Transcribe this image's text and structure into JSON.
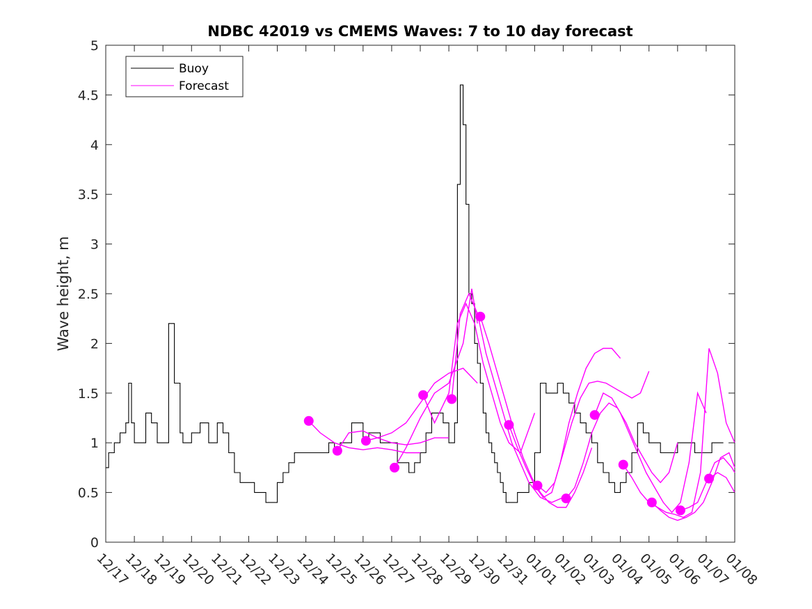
{
  "chart_data": {
    "type": "line",
    "title": "NDBC 42019 vs CMEMS Waves: 7 to 10 day forecast",
    "xlabel": "",
    "ylabel": "Wave height, m",
    "ylim": [
      0,
      5
    ],
    "xlim": [
      0,
      22
    ],
    "yticks": [
      0,
      0.5,
      1,
      1.5,
      2,
      2.5,
      3,
      3.5,
      4,
      4.5,
      5
    ],
    "ytick_labels": [
      "0",
      "0.5",
      "1",
      "1.5",
      "2",
      "2.5",
      "3",
      "3.5",
      "4",
      "4.5",
      "5"
    ],
    "xticks": [
      0,
      1,
      2,
      3,
      4,
      5,
      6,
      7,
      8,
      9,
      10,
      11,
      12,
      13,
      14,
      15,
      16,
      17,
      18,
      19,
      20,
      21,
      22
    ],
    "xtick_labels": [
      "12/17",
      "12/18",
      "12/19",
      "12/20",
      "12/21",
      "12/22",
      "12/23",
      "12/24",
      "12/25",
      "12/26",
      "12/27",
      "12/28",
      "12/29",
      "12/30",
      "12/31",
      "01/01",
      "01/02",
      "01/03",
      "01/04",
      "01/05",
      "01/06",
      "01/07",
      "01/08"
    ],
    "legend": {
      "placement": "top-left",
      "entries": [
        {
          "label": "Buoy",
          "color": "#000000"
        },
        {
          "label": "Forecast",
          "color": "#ff00ff"
        }
      ]
    },
    "series": [
      {
        "name": "Buoy",
        "color": "#000000",
        "x": [
          0,
          0.1,
          0.3,
          0.5,
          0.7,
          0.8,
          0.9,
          1.0,
          1.2,
          1.4,
          1.6,
          1.8,
          2.0,
          2.2,
          2.4,
          2.6,
          2.7,
          2.8,
          3.0,
          3.3,
          3.6,
          3.9,
          4.1,
          4.3,
          4.5,
          4.7,
          5.0,
          5.2,
          5.4,
          5.6,
          5.8,
          6.0,
          6.2,
          6.4,
          6.6,
          6.8,
          7.0,
          7.2,
          7.4,
          7.6,
          7.8,
          8.0,
          8.2,
          8.4,
          8.6,
          8.8,
          9.0,
          9.2,
          9.4,
          9.6,
          9.8,
          10.0,
          10.2,
          10.4,
          10.6,
          10.8,
          11.0,
          11.2,
          11.4,
          11.6,
          11.8,
          12.0,
          12.2,
          12.3,
          12.4,
          12.5,
          12.6,
          12.7,
          12.8,
          12.9,
          13.0,
          13.1,
          13.2,
          13.3,
          13.4,
          13.5,
          13.6,
          13.7,
          13.8,
          13.9,
          14.0,
          14.2,
          14.4,
          14.6,
          14.8,
          15.0,
          15.2,
          15.4,
          15.6,
          15.8,
          16.0,
          16.2,
          16.4,
          16.6,
          16.8,
          17.0,
          17.2,
          17.4,
          17.6,
          17.8,
          18.0,
          18.2,
          18.4,
          18.6,
          18.8,
          19.0,
          19.2,
          19.4,
          19.6,
          19.8,
          20.0,
          20.2,
          20.4,
          20.6,
          20.8,
          21.0,
          21.2,
          21.4,
          21.6
        ],
        "values": [
          0.75,
          0.9,
          1.0,
          1.1,
          1.2,
          1.6,
          1.2,
          1.0,
          1.0,
          1.3,
          1.2,
          1.0,
          1.0,
          2.2,
          1.6,
          1.1,
          1.0,
          1.0,
          1.1,
          1.2,
          1.0,
          1.2,
          1.1,
          0.9,
          0.7,
          0.6,
          0.6,
          0.5,
          0.5,
          0.4,
          0.4,
          0.6,
          0.7,
          0.8,
          0.9,
          0.9,
          0.9,
          0.9,
          0.9,
          0.9,
          1.0,
          0.9,
          1.0,
          1.0,
          1.2,
          1.2,
          1.0,
          1.1,
          1.1,
          1.0,
          1.0,
          1.0,
          0.8,
          0.8,
          0.7,
          0.8,
          0.9,
          1.1,
          1.3,
          1.3,
          1.2,
          1.0,
          1.2,
          3.6,
          4.6,
          4.2,
          3.4,
          2.5,
          2.4,
          2.0,
          1.8,
          1.6,
          1.3,
          1.1,
          1.0,
          0.9,
          0.8,
          0.7,
          0.6,
          0.5,
          0.4,
          0.4,
          0.5,
          0.5,
          0.6,
          0.9,
          1.6,
          1.5,
          1.5,
          1.6,
          1.5,
          1.4,
          1.3,
          1.2,
          1.1,
          1.0,
          0.8,
          0.7,
          0.6,
          0.5,
          0.6,
          0.7,
          0.9,
          1.2,
          1.1,
          1.0,
          1.0,
          0.9,
          0.9,
          0.9,
          1.0,
          1.0,
          1.0,
          0.9,
          0.9,
          0.9,
          1.0,
          1.0,
          1.0
        ]
      },
      {
        "name": "Forecast",
        "color": "#ff00ff",
        "segments": [
          {
            "x": [
              7.1,
              7.5,
              8.0,
              8.5,
              9.0,
              9.5,
              10.0,
              10.5,
              11.0
            ],
            "values": [
              1.22,
              1.1,
              1.0,
              0.95,
              0.93,
              0.95,
              0.93,
              0.9,
              0.9
            ]
          },
          {
            "x": [
              8.1,
              8.5,
              9.0,
              9.5,
              10.0,
              10.5,
              11.0,
              11.5,
              12.0
            ],
            "values": [
              0.92,
              1.1,
              1.12,
              1.05,
              1.0,
              0.98,
              1.0,
              1.05,
              1.05
            ]
          },
          {
            "x": [
              9.1,
              9.5,
              10.0,
              10.5,
              11.0,
              11.5,
              12.0,
              12.5,
              13.0
            ],
            "values": [
              1.02,
              1.05,
              1.1,
              1.2,
              1.4,
              1.6,
              1.7,
              1.75,
              1.6
            ]
          },
          {
            "x": [
              10.1,
              10.5,
              11.0,
              11.5,
              12.0,
              12.5,
              12.8,
              13.0
            ],
            "values": [
              0.75,
              0.95,
              1.25,
              1.5,
              1.6,
              2.0,
              2.55,
              2.2
            ]
          },
          {
            "x": [
              11.1,
              11.5,
              12.0,
              12.3,
              12.6,
              12.9,
              13.2,
              13.5,
              13.8,
              14.1,
              14.5,
              15.0
            ],
            "values": [
              1.48,
              1.2,
              1.5,
              2.2,
              2.4,
              2.2,
              1.8,
              1.5,
              1.2,
              1.0,
              0.9,
              1.3
            ]
          },
          {
            "x": [
              12.1,
              12.4,
              12.7,
              13.0,
              13.3,
              13.6,
              13.9,
              14.2,
              14.5,
              14.8,
              15.2,
              15.6,
              16.0
            ],
            "values": [
              1.44,
              2.3,
              2.5,
              2.3,
              1.9,
              1.6,
              1.3,
              1.0,
              0.8,
              0.6,
              0.45,
              0.4,
              0.45
            ]
          },
          {
            "x": [
              13.1,
              13.4,
              13.7,
              14.0,
              14.3,
              14.6,
              14.9,
              15.2,
              15.5,
              15.8,
              16.1,
              16.4,
              16.7,
              17.0
            ],
            "values": [
              2.27,
              2.0,
              1.7,
              1.4,
              1.1,
              0.85,
              0.65,
              0.5,
              0.4,
              0.35,
              0.35,
              0.5,
              0.7,
              0.95
            ]
          },
          {
            "x": [
              14.1,
              14.4,
              14.7,
              15.0,
              15.3,
              15.6,
              15.9,
              16.2,
              16.5,
              16.8,
              17.1,
              17.4,
              17.7,
              18.0
            ],
            "values": [
              1.18,
              0.95,
              0.75,
              0.57,
              0.45,
              0.5,
              0.8,
              1.2,
              1.5,
              1.75,
              1.9,
              1.95,
              1.95,
              1.85
            ]
          },
          {
            "x": [
              15.1,
              15.4,
              15.7,
              16.0,
              16.3,
              16.6,
              16.9,
              17.2,
              17.5,
              17.8,
              18.1,
              18.4,
              18.7,
              19.0
            ],
            "values": [
              0.57,
              0.5,
              0.6,
              0.9,
              1.2,
              1.45,
              1.6,
              1.62,
              1.6,
              1.55,
              1.5,
              1.45,
              1.5,
              1.72
            ]
          },
          {
            "x": [
              16.1,
              16.4,
              16.7,
              17.0,
              17.3,
              17.6,
              17.9,
              18.2,
              18.5,
              18.8,
              19.1,
              19.4,
              19.7,
              20.0
            ],
            "values": [
              0.44,
              0.55,
              0.8,
              1.1,
              1.3,
              1.4,
              1.35,
              1.2,
              1.0,
              0.85,
              0.7,
              0.6,
              0.7,
              1.0
            ]
          },
          {
            "x": [
              17.1,
              17.4,
              17.7,
              18.0,
              18.3,
              18.6,
              18.9,
              19.2,
              19.5,
              19.8,
              20.1,
              20.4,
              20.7,
              21.0
            ],
            "values": [
              1.28,
              1.5,
              1.45,
              1.3,
              1.1,
              0.9,
              0.7,
              0.55,
              0.4,
              0.3,
              0.4,
              0.8,
              1.5,
              1.3
            ]
          },
          {
            "x": [
              18.1,
              18.4,
              18.7,
              19.0,
              19.3,
              19.6,
              19.9,
              20.2,
              20.5,
              20.8,
              21.1,
              21.4,
              21.7,
              22.0
            ],
            "values": [
              0.78,
              0.65,
              0.5,
              0.4,
              0.35,
              0.3,
              0.28,
              0.25,
              0.3,
              0.7,
              1.95,
              1.7,
              1.2,
              1.0
            ]
          },
          {
            "x": [
              19.1,
              19.4,
              19.7,
              20.0,
              20.3,
              20.6,
              20.9,
              21.2,
              21.5,
              21.8,
              22.0
            ],
            "values": [
              0.4,
              0.32,
              0.25,
              0.22,
              0.25,
              0.3,
              0.4,
              0.6,
              0.85,
              0.9,
              0.75
            ]
          },
          {
            "x": [
              20.1,
              20.4,
              20.7,
              21.0,
              21.3,
              21.6,
              21.9,
              22.0
            ],
            "values": [
              0.32,
              0.35,
              0.4,
              0.6,
              0.8,
              0.85,
              0.75,
              0.7
            ]
          },
          {
            "x": [
              21.1,
              21.4,
              21.7,
              22.0
            ],
            "values": [
              0.64,
              0.7,
              0.65,
              0.5
            ]
          }
        ],
        "markers": {
          "x": [
            7.1,
            8.1,
            9.1,
            10.1,
            11.1,
            12.1,
            13.1,
            14.1,
            15.1,
            16.1,
            17.1,
            18.1,
            19.1,
            20.1,
            21.1
          ],
          "values": [
            1.22,
            0.92,
            1.02,
            0.75,
            1.48,
            1.44,
            2.27,
            1.18,
            0.57,
            0.44,
            1.28,
            0.78,
            0.4,
            0.32,
            0.64
          ]
        }
      }
    ]
  }
}
